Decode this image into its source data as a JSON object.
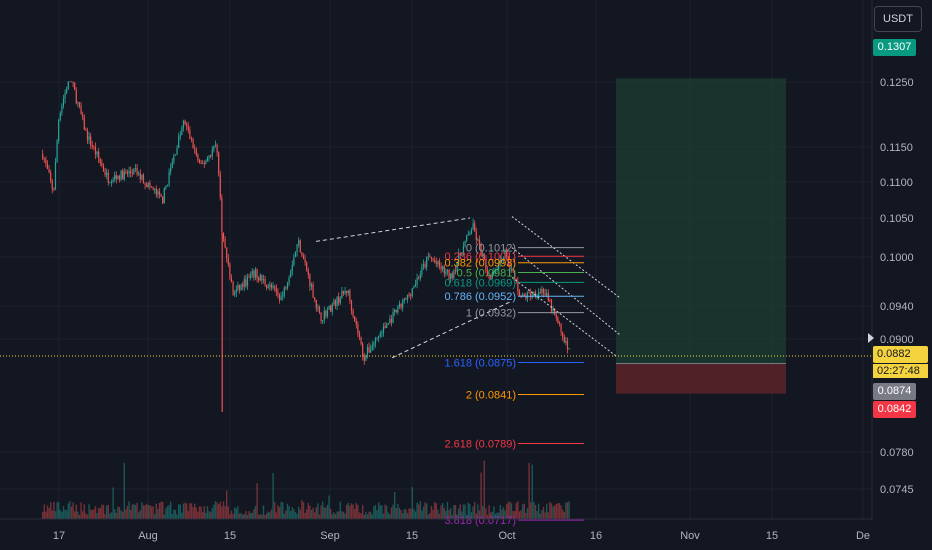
{
  "header": {
    "currency": "USDT"
  },
  "price_axis": {
    "ticks": [
      "0.1250",
      "0.1150",
      "0.1100",
      "0.1050",
      "0.1000",
      "0.0940",
      "0.0900",
      "0.0780",
      "0.0745"
    ],
    "badges": {
      "target": "0.1307",
      "last": "0.0882",
      "countdown": "02:27:48",
      "entry": "0.0874",
      "stop": "0.0842"
    }
  },
  "time_axis": {
    "ticks": [
      "17",
      "Aug",
      "15",
      "Sep",
      "15",
      "Oct",
      "16",
      "Nov",
      "15",
      "De"
    ]
  },
  "colors": {
    "up": "#26a69a",
    "down": "#ef5350",
    "bg": "#131722",
    "profit": "#1e4d35",
    "loss": "#5c2429",
    "last_price": "#f5d33e"
  },
  "fib_levels": [
    {
      "label": "0 (0.1012)",
      "color": "#9598a1"
    },
    {
      "label": "0.236 (0.1001)",
      "color": "#f23645"
    },
    {
      "label": "0.382 (0.0993)",
      "color": "#ff9800"
    },
    {
      "label": "0.5 (0.0981)",
      "color": "#4caf50"
    },
    {
      "label": "0.618 (0.0969)",
      "color": "#089981"
    },
    {
      "label": "0.786 (0.0952)",
      "color": "#64b5f6"
    },
    {
      "label": "1 (0.0932)",
      "color": "#9598a1"
    },
    {
      "label": "1.618 (0.0875)",
      "color": "#2962ff"
    },
    {
      "label": "2 (0.0841)",
      "color": "#ff9800"
    },
    {
      "label": "2.618 (0.0789)",
      "color": "#f23645"
    },
    {
      "label": "3.618 (0.0717)",
      "color": "#9c27b0"
    }
  ],
  "chart_data": {
    "type": "candlestick",
    "symbol_quote": "USDT",
    "price_axis_ticks": [
      0.125,
      0.115,
      0.11,
      0.105,
      0.1,
      0.094,
      0.09,
      0.078,
      0.0745
    ],
    "price_series": [
      {
        "date": "Jul 14",
        "price": 0.114
      },
      {
        "date": "Jul 16",
        "price": 0.1085
      },
      {
        "date": "Jul 17",
        "price": 0.12
      },
      {
        "date": "Jul 19",
        "price": 0.126
      },
      {
        "date": "Jul 22",
        "price": 0.117
      },
      {
        "date": "Jul 26",
        "price": 0.1105
      },
      {
        "date": "Jul 31",
        "price": 0.1115
      },
      {
        "date": "Aug 5",
        "price": 0.1075
      },
      {
        "date": "Aug 9",
        "price": 0.119
      },
      {
        "date": "Aug 12",
        "price": 0.112
      },
      {
        "date": "Aug 15",
        "price": 0.1155
      },
      {
        "date": "Aug 16",
        "price": 0.103
      },
      {
        "date": "Aug 18",
        "price": 0.0955
      },
      {
        "date": "Aug 22",
        "price": 0.098
      },
      {
        "date": "Aug 27",
        "price": 0.095
      },
      {
        "date": "Aug 30",
        "price": 0.102
      },
      {
        "date": "Sep 3",
        "price": 0.0925
      },
      {
        "date": "Sep 8",
        "price": 0.096
      },
      {
        "date": "Sep 11",
        "price": 0.088
      },
      {
        "date": "Sep 15",
        "price": 0.0915
      },
      {
        "date": "Sep 19",
        "price": 0.095
      },
      {
        "date": "Sep 23",
        "price": 0.1
      },
      {
        "date": "Sep 27",
        "price": 0.0975
      },
      {
        "date": "Oct 1",
        "price": 0.104
      },
      {
        "date": "Oct 4",
        "price": 0.0975
      },
      {
        "date": "Oct 7",
        "price": 0.1005
      },
      {
        "date": "Oct 10",
        "price": 0.095
      },
      {
        "date": "Oct 14",
        "price": 0.096
      },
      {
        "date": "Oct 16",
        "price": 0.093
      },
      {
        "date": "Oct 19",
        "price": 0.0882
      }
    ],
    "last_price": 0.0882,
    "position": {
      "entry": 0.0874,
      "target": 0.1307,
      "stop": 0.0842
    },
    "fibonacci_extension": [
      {
        "ratio": 0,
        "price": 0.1012
      },
      {
        "ratio": 0.236,
        "price": 0.1001
      },
      {
        "ratio": 0.382,
        "price": 0.0993
      },
      {
        "ratio": 0.5,
        "price": 0.0981
      },
      {
        "ratio": 0.618,
        "price": 0.0969
      },
      {
        "ratio": 0.786,
        "price": 0.0952
      },
      {
        "ratio": 1,
        "price": 0.0932
      },
      {
        "ratio": 1.618,
        "price": 0.0875
      },
      {
        "ratio": 2,
        "price": 0.0841
      },
      {
        "ratio": 2.618,
        "price": 0.0789
      },
      {
        "ratio": 3.618,
        "price": 0.0717
      }
    ],
    "grid": true
  }
}
